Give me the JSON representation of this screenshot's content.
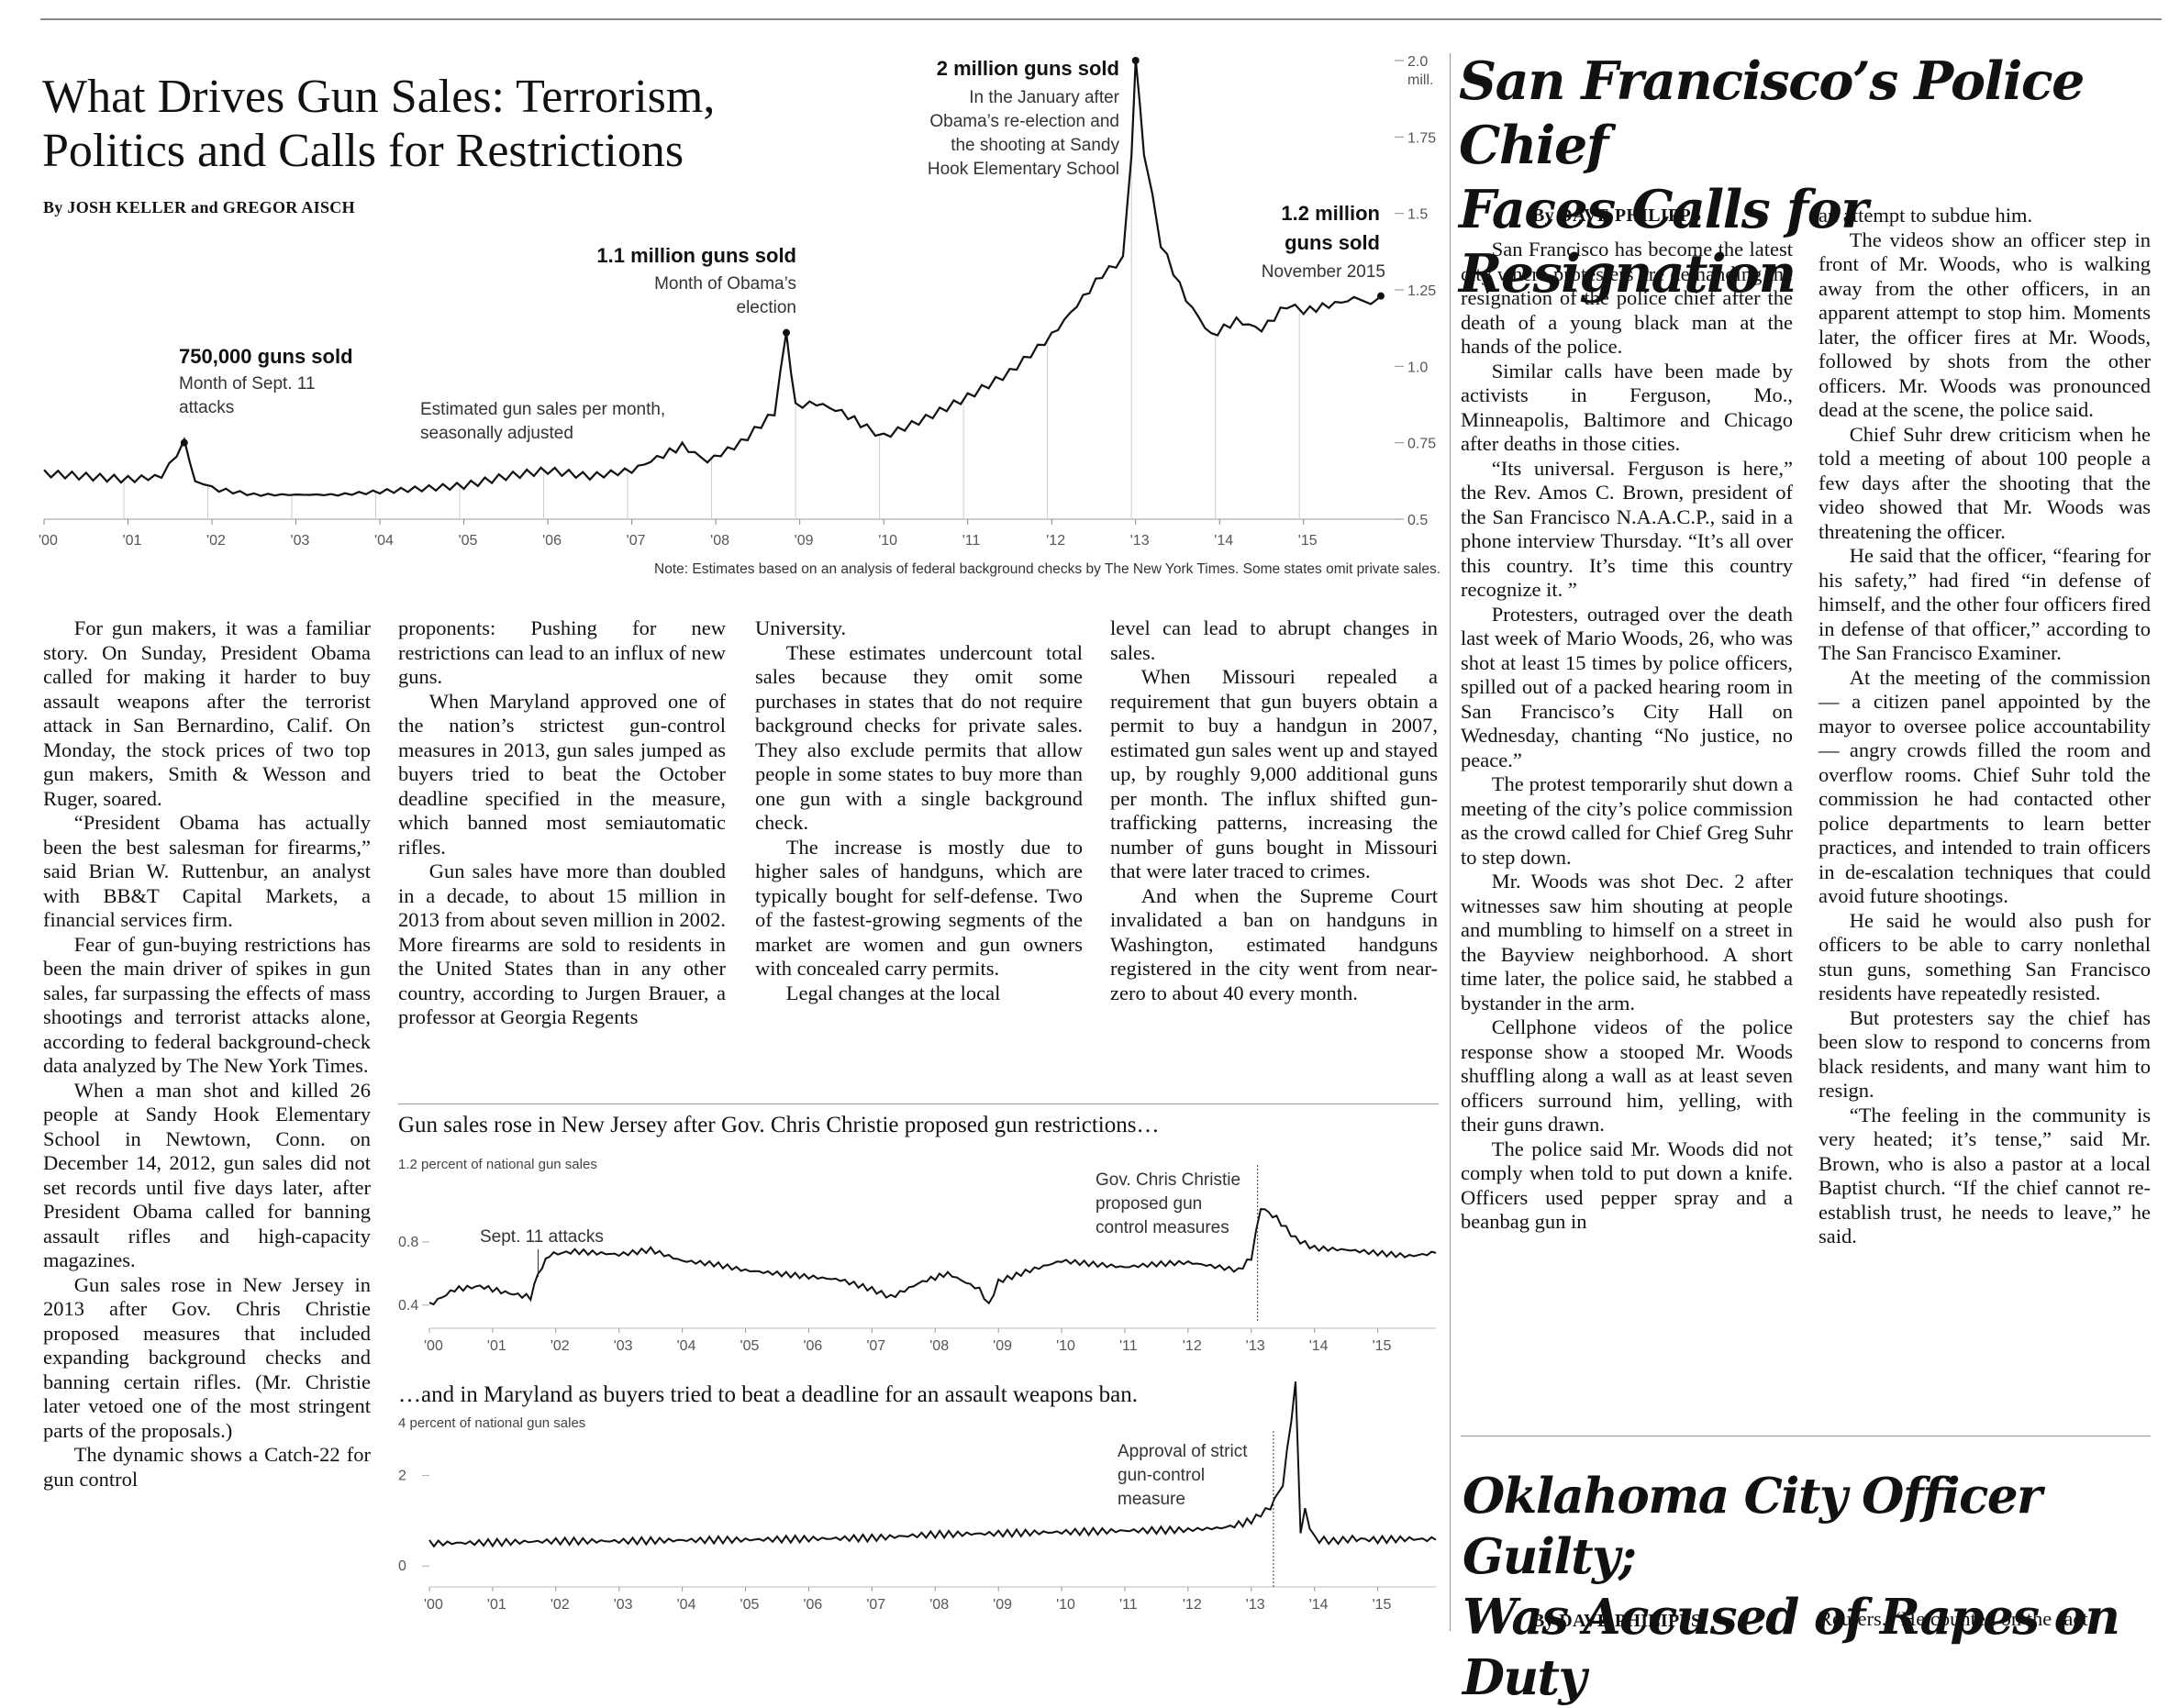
{
  "gun_story": {
    "headline_line1": "What Drives Gun Sales: Terrorism,",
    "headline_line2": "Politics and Calls for Restrictions",
    "byline": "By JOSH KELLER and GREGOR AISCH",
    "columns": [
      [
        "For gun makers, it was a familiar story. On Sunday, President Obama called for making it harder to buy assault weapons after the terrorist attack in San Bernardino, Calif. On Monday, the stock prices of two top gun makers, Smith & Wesson and Ruger, soared.",
        "“President Obama has actually been the best salesman for firearms,” said Brian W. Ruttenbur, an analyst with BB&T Capital Markets, a financial services firm.",
        "Fear of gun-buying restrictions has been the main driver of spikes in gun sales, far surpassing the effects of mass shootings and terrorist attacks alone, according to federal background-check data analyzed by The New York Times.",
        "When a man shot and killed 26 people at Sandy Hook Elementary School in Newtown, Conn. on December 14, 2012, gun sales did not set records until five days later, after President Obama called for banning assault rifles and high-capacity magazines.",
        "Gun sales rose in New Jersey in 2013 after Gov. Chris Christie proposed measures that included expanding background checks and banning certain rifles. (Mr. Christie later vetoed one of the most stringent parts of the proposals.)",
        "The dynamic shows a Catch-22 for gun control"
      ],
      [
        "proponents: Pushing for new restrictions can lead to an influx of new guns.",
        "When Maryland approved one of the nation’s strictest gun-control measures in 2013, gun sales jumped as buyers tried to beat the October deadline specified in the measure, which banned most semiautomatic rifles.",
        "Gun sales have more than doubled in a decade, to about 15 million in 2013 from about seven million in 2002. More firearms are sold to residents in the United States than in any other country, according to Jurgen Brauer, a professor at Georgia Regents"
      ],
      [
        "University.",
        "These estimates undercount total sales because they omit some purchases in states that do not require background checks for private sales. They also exclude permits that allow people in some states to buy more than one gun with a single background check.",
        "The increase is mostly due to higher sales of handguns, which are typically bought for self-defense. Two of the fastest-growing segments of the market are women and gun owners with concealed carry permits.",
        "Legal changes at the local"
      ],
      [
        "level can lead to abrupt changes in sales.",
        "When Missouri repealed a requirement that gun buyers obtain a permit to buy a handgun in 2007, estimated gun sales went up and stayed up, by roughly 9,000 additional guns per month. The influx shifted gun-trafficking patterns, increasing the number of guns bought in Missouri that were later traced to crimes.",
        "And when the Supreme Court invalidated a ban on handguns in Washington, estimated handguns registered in the city went from near-zero to about 40 every month."
      ]
    ]
  },
  "main_chart": {
    "note": "Note: Estimates based on an analysis of federal background checks by The New York Times. Some states omit private sales.",
    "series_label_line1": "Estimated gun sales per month,",
    "series_label_line2": "seasonally adjusted",
    "annotations": {
      "a2001_bold": "750,000 guns sold",
      "a2001_l1": "Month of Sept. 11",
      "a2001_l2": "attacks",
      "a2008_bold": "1.1 million guns sold",
      "a2008_l1": "Month of Obama’s",
      "a2008_l2": "election",
      "a2013_bold": "2 million guns sold",
      "a2013_l1": "In the January after",
      "a2013_l2": "Obama’s re-election and",
      "a2013_l3": "the shooting at Sandy",
      "a2013_l4": "Hook Elementary School",
      "a2015_bold1": "1.2 million",
      "a2015_bold2": "guns sold",
      "a2015_l1": "November 2015"
    }
  },
  "nj_chart": {
    "title": "Gun sales rose in New Jersey after Gov. Chris Christie proposed gun restrictions…",
    "ylabel": "1.2 percent of national gun sales",
    "ann_sept11": "Sept. 11 attacks",
    "ann_christie_l1": "Gov. Chris Christie",
    "ann_christie_l2": "proposed gun",
    "ann_christie_l3": "control measures"
  },
  "md_chart": {
    "title": "…and in Maryland as buyers tried to beat a deadline for an assault weapons ban.",
    "ylabel": "4 percent of national gun sales",
    "ann_l1": "Approval of strict",
    "ann_l2": "gun-control",
    "ann_l3": "measure"
  },
  "sf_story": {
    "headline_line1": "San Francisco’s Police Chief",
    "headline_line2": "Faces Calls for Resignation",
    "byline": "By DAVE PHILIPPS",
    "col1": [
      "San Francisco has become the latest city where protesters are demanding the resignation of the police chief after the death of a young black man at the hands of the police.",
      "Similar calls have been made by activists in Ferguson, Mo., Minneapolis, Baltimore and Chicago after deaths in those cities.",
      "“Its universal. Ferguson is here,” the Rev. Amos C. Brown, president of the San Francisco N.A.A.C.P., said in a phone interview Thursday. “It’s all over this country. It’s time this country recognize it. ”",
      "Protesters, outraged over the death last week of Mario Woods, 26, who was shot at least 15 times by police officers, spilled out of a packed hearing room in San Francisco’s City Hall on Wednesday, chanting “No justice, no peace.”",
      "The protest temporarily shut down a meeting of the city’s police commission as the crowd called for Chief Greg Suhr to step down.",
      "Mr. Woods was shot Dec. 2 after witnesses saw him shouting at people and mumbling to himself on a street in the Bayview neighborhood. A short time later, the police said, he stabbed a bystander in the arm.",
      "Cellphone videos of the police response show a stooped Mr. Woods shuffling along a wall as at least seven officers surround him, yelling, with their guns drawn.",
      "The police said Mr. Woods did not comply when told to put down a knife. Officers used pepper spray and a beanbag gun in"
    ],
    "col2": [
      "an attempt to subdue him.",
      "The videos show an officer step in front of Mr. Woods, who is walking away from the other officers, in an apparent attempt to stop him. Moments later, the officer fires at Mr. Woods, followed by shots from the other officers. Mr. Woods was pronounced dead at the scene, the police said.",
      "Chief Suhr drew criticism when he told a meeting of about 100 people a few days after the shooting that the video showed that Mr. Woods was threatening the officer.",
      "He said that the officer, “fearing for his safety,” had fired “in defense of himself, and the other four officers fired in defense of that officer,” according to The San Francisco Examiner.",
      "At the meeting of the commission — a citizen panel appointed by the mayor to oversee police accountability — angry crowds filled the room and overflow rooms. Chief Suhr told the commission he had contacted other police departments to learn better practices, and intended to train officers in de-escalation techniques that could avoid future shootings.",
      "He said he would also push for officers to be able to carry nonlethal stun guns, something San Francisco residents have repeatedly resisted.",
      "But protesters say the chief has been slow to respond to concerns from black residents, and many want him to resign.",
      "“The feeling in the community is very heated; it’s tense,” said Mr. Brown, who is also a pastor at a local Baptist church. “If the chief cannot re-establish trust, he needs to leave,” he said."
    ]
  },
  "ok_story": {
    "headline_line1": "Oklahoma City Officer Guilty;",
    "headline_line2": "Was Accused of Rapes on Duty",
    "byline": "By DAVE PHILIPPS",
    "col2_start": "Reuters. “He counted on the fact"
  },
  "chart_data": [
    {
      "type": "line",
      "title": "",
      "ylabel": "",
      "x_ticks": [
        "'00",
        "'01",
        "'02",
        "'03",
        "'04",
        "'05",
        "'06",
        "'07",
        "'08",
        "'09",
        "'10",
        "'11",
        "'12",
        "'13",
        "'14",
        "'15"
      ],
      "y_ticks": [
        "0.5",
        "0.75",
        "1.0",
        "1.25",
        "1.5",
        "1.75",
        "2.0"
      ],
      "y_top_unit": "mill.",
      "ylim": [
        0.5,
        2.0
      ],
      "xlim": [
        2000.0,
        2015.92
      ],
      "x": [
        2000.0,
        2000.5,
        2001.0,
        2001.4,
        2001.67,
        2001.8,
        2002.0,
        2002.5,
        2003.0,
        2003.5,
        2004.0,
        2004.5,
        2005.0,
        2005.5,
        2006.0,
        2006.5,
        2007.0,
        2007.3,
        2007.6,
        2007.9,
        2008.3,
        2008.7,
        2008.84,
        2008.95,
        2009.2,
        2009.5,
        2009.8,
        2010.0,
        2010.5,
        2011.0,
        2011.5,
        2012.0,
        2012.3,
        2012.6,
        2012.85,
        2012.95,
        2013.0,
        2013.1,
        2013.3,
        2013.6,
        2013.9,
        2014.2,
        2014.5,
        2014.8,
        2015.0,
        2015.3,
        2015.6,
        2015.8,
        2015.92
      ],
      "y": [
        0.65,
        0.64,
        0.63,
        0.64,
        0.75,
        0.63,
        0.6,
        0.58,
        0.58,
        0.58,
        0.59,
        0.6,
        0.61,
        0.64,
        0.66,
        0.64,
        0.66,
        0.7,
        0.74,
        0.69,
        0.75,
        0.85,
        1.11,
        0.87,
        0.88,
        0.85,
        0.8,
        0.77,
        0.83,
        0.9,
        0.98,
        1.1,
        1.2,
        1.3,
        1.35,
        1.7,
        2.0,
        1.7,
        1.4,
        1.22,
        1.1,
        1.15,
        1.12,
        1.2,
        1.18,
        1.2,
        1.22,
        1.21,
        1.23
      ]
    },
    {
      "type": "line",
      "title": "Gun sales rose in New Jersey after Gov. Chris Christie proposed gun restrictions…",
      "ylabel": "1.2 percent of national gun sales",
      "x_ticks": [
        "'00",
        "'01",
        "'02",
        "'03",
        "'04",
        "'05",
        "'06",
        "'07",
        "'08",
        "'09",
        "'10",
        "'11",
        "'12",
        "'13",
        "'14",
        "'15"
      ],
      "y_ticks": [
        "0.4",
        "0.8"
      ],
      "ylim": [
        0.3,
        1.2
      ],
      "xlim": [
        2000.0,
        2015.92
      ],
      "x": [
        2000.0,
        2000.4,
        2000.8,
        2001.2,
        2001.6,
        2001.72,
        2001.9,
        2002.3,
        2003.0,
        2003.5,
        2004.0,
        2004.5,
        2005.0,
        2005.5,
        2006.0,
        2006.5,
        2007.0,
        2007.3,
        2007.8,
        2008.2,
        2008.7,
        2008.85,
        2009.0,
        2009.5,
        2010.0,
        2010.5,
        2011.0,
        2011.5,
        2012.0,
        2012.5,
        2012.8,
        2013.0,
        2013.15,
        2013.4,
        2013.7,
        2014.0,
        2014.5,
        2015.0,
        2015.5,
        2015.92
      ],
      "y": [
        0.4,
        0.5,
        0.52,
        0.48,
        0.45,
        0.6,
        0.72,
        0.74,
        0.72,
        0.75,
        0.68,
        0.66,
        0.62,
        0.6,
        0.58,
        0.56,
        0.5,
        0.45,
        0.55,
        0.6,
        0.5,
        0.4,
        0.55,
        0.62,
        0.68,
        0.66,
        0.64,
        0.66,
        0.67,
        0.64,
        0.62,
        0.7,
        1.02,
        0.95,
        0.82,
        0.76,
        0.75,
        0.73,
        0.71,
        0.73
      ]
    },
    {
      "type": "line",
      "title": "…and in Maryland as buyers tried to beat a deadline for an assault weapons ban.",
      "ylabel": "4 percent of national gun sales",
      "x_ticks": [
        "'00",
        "'01",
        "'02",
        "'03",
        "'04",
        "'05",
        "'06",
        "'07",
        "'08",
        "'09",
        "'10",
        "'11",
        "'12",
        "'13",
        "'14",
        "'15"
      ],
      "y_ticks": [
        "0",
        "2"
      ],
      "ylim": [
        -0.3,
        4.0
      ],
      "xlim": [
        2000.0,
        2015.92
      ],
      "x": [
        2000.0,
        2001.0,
        2002.0,
        2003.0,
        2004.0,
        2005.0,
        2006.0,
        2007.0,
        2008.0,
        2009.0,
        2010.0,
        2011.0,
        2012.0,
        2012.6,
        2013.0,
        2013.3,
        2013.5,
        2013.7,
        2013.78,
        2013.85,
        2014.0,
        2014.3,
        2014.6,
        2015.0,
        2015.5,
        2015.92
      ],
      "y": [
        0.5,
        0.52,
        0.55,
        0.55,
        0.57,
        0.58,
        0.6,
        0.62,
        0.7,
        0.72,
        0.75,
        0.78,
        0.8,
        0.85,
        1.0,
        1.3,
        1.8,
        4.0,
        0.8,
        1.2,
        0.6,
        0.55,
        0.6,
        0.58,
        0.6,
        0.58
      ]
    }
  ]
}
